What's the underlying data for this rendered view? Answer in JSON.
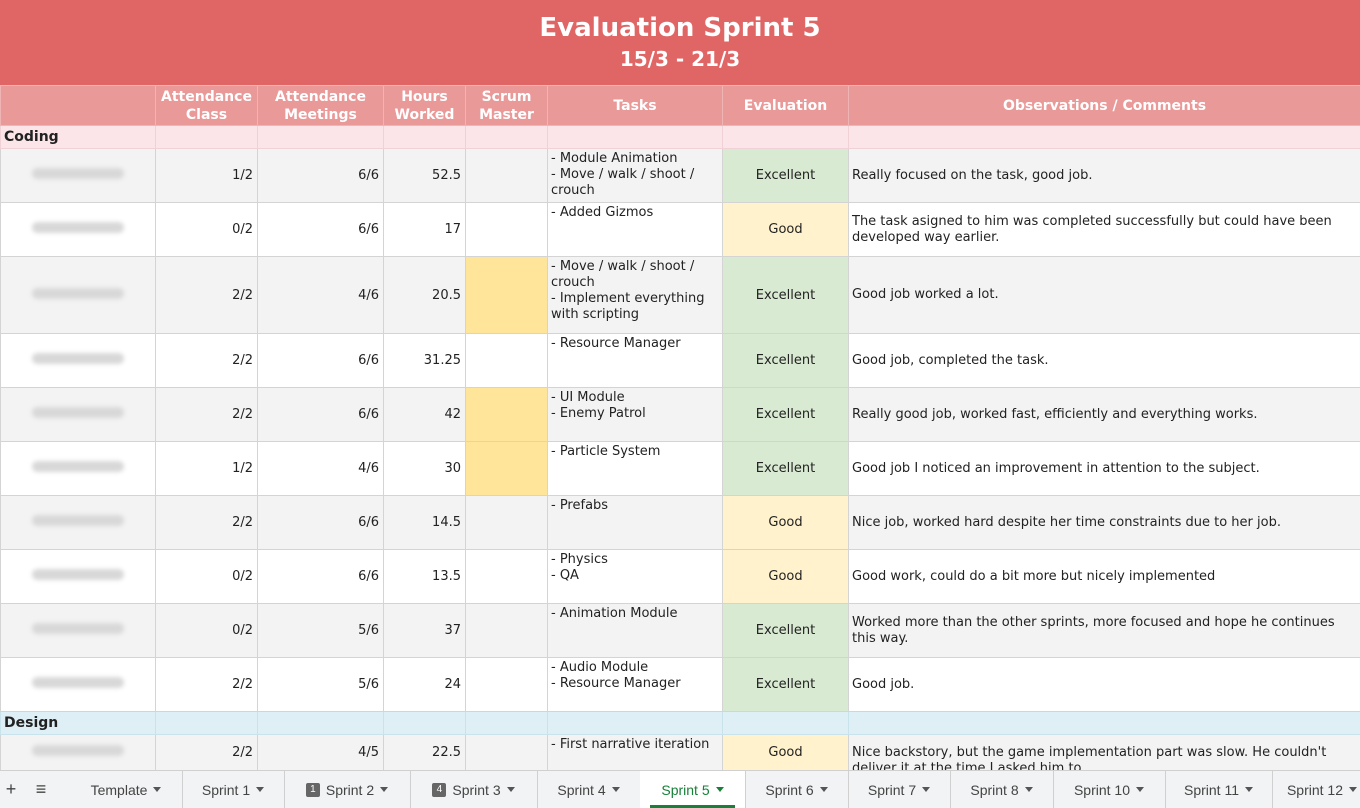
{
  "title": "Evaluation Sprint 5",
  "dates": "15/3 - 21/3",
  "headers": {
    "attendance_class": "Attendance Class",
    "attendance_meetings": "Attendance Meetings",
    "hours_worked": "Hours Worked",
    "scrum_master": "Scrum Master",
    "tasks": "Tasks",
    "evaluation": "Evaluation",
    "observations": "Observations / Comments"
  },
  "sections": {
    "coding": "Coding",
    "design": "Design"
  },
  "rows": [
    {
      "class": "1/2",
      "meetings": "6/6",
      "hours": "52.5",
      "scrum": false,
      "tasks": "- Module Animation\n- Move / walk / shoot /\ncrouch",
      "evaluation": "Excellent",
      "comment": "Really focused on the task, good job."
    },
    {
      "class": "0/2",
      "meetings": "6/6",
      "hours": "17",
      "scrum": false,
      "tasks": "- Added Gizmos",
      "evaluation": "Good",
      "comment": "The task asigned to him was completed successfully but could have been developed way earlier."
    },
    {
      "class": "2/2",
      "meetings": "4/6",
      "hours": "20.5",
      "scrum": true,
      "tasks": "- Move / walk / shoot /\ncrouch\n- Implement everything\nwith scripting",
      "evaluation": "Excellent",
      "comment": "Good job worked a lot."
    },
    {
      "class": "2/2",
      "meetings": "6/6",
      "hours": "31.25",
      "scrum": false,
      "tasks": "- Resource Manager",
      "evaluation": "Excellent",
      "comment": "Good job, completed the task."
    },
    {
      "class": "2/2",
      "meetings": "6/6",
      "hours": "42",
      "scrum": true,
      "tasks": "- UI Module\n- Enemy Patrol",
      "evaluation": "Excellent",
      "comment": "Really good job, worked fast, efficiently and everything works."
    },
    {
      "class": "1/2",
      "meetings": "4/6",
      "hours": "30",
      "scrum": true,
      "tasks": "- Particle System",
      "evaluation": "Excellent",
      "comment": "Good job I noticed an improvement in attention to the subject."
    },
    {
      "class": "2/2",
      "meetings": "6/6",
      "hours": "14.5",
      "scrum": false,
      "tasks": "- Prefabs",
      "evaluation": "Good",
      "comment": "Nice job, worked hard despite her time constraints due to her job."
    },
    {
      "class": "0/2",
      "meetings": "6/6",
      "hours": "13.5",
      "scrum": false,
      "tasks": "- Physics\n- QA",
      "evaluation": "Good",
      "comment": "Good work, could do a bit more but nicely implemented"
    },
    {
      "class": "0/2",
      "meetings": "5/6",
      "hours": "37",
      "scrum": false,
      "tasks": "- Animation Module",
      "evaluation": "Excellent",
      "comment": "Worked more than the other sprints, more focused and hope he continues this way."
    },
    {
      "class": "2/2",
      "meetings": "5/6",
      "hours": "24",
      "scrum": false,
      "tasks": "- Audio Module\n- Resource Manager",
      "evaluation": "Excellent",
      "comment": "Good job."
    },
    {
      "class": "2/2",
      "meetings": "4/5",
      "hours": "22.5",
      "scrum": false,
      "tasks": "- First narrative iteration",
      "evaluation": "Good",
      "comment": "Nice backstory, but the game implementation part was slow. He couldn't deliver it at the time I asked him to"
    }
  ],
  "colors": {
    "banner": "#e06666",
    "header": "#ea9999",
    "excellent": "#d9ead3",
    "good": "#fff2cc",
    "scrum": "#ffe599",
    "active_tab": "#188038"
  },
  "tabs": [
    {
      "label": "Template",
      "badge": ""
    },
    {
      "label": "Sprint 1",
      "badge": ""
    },
    {
      "label": "Sprint 2",
      "badge": "1"
    },
    {
      "label": "Sprint 3",
      "badge": "4"
    },
    {
      "label": "Sprint 4",
      "badge": ""
    },
    {
      "label": "Sprint 5",
      "badge": "",
      "active": true
    },
    {
      "label": "Sprint 6",
      "badge": ""
    },
    {
      "label": "Sprint 7",
      "badge": ""
    },
    {
      "label": "Sprint 8",
      "badge": ""
    },
    {
      "label": "Sprint 10",
      "badge": ""
    },
    {
      "label": "Sprint 11",
      "badge": ""
    },
    {
      "label": "Sprint 12",
      "badge": ""
    }
  ],
  "icons": {
    "add_sheet": "plus-icon",
    "all_sheets": "menu-icon"
  }
}
